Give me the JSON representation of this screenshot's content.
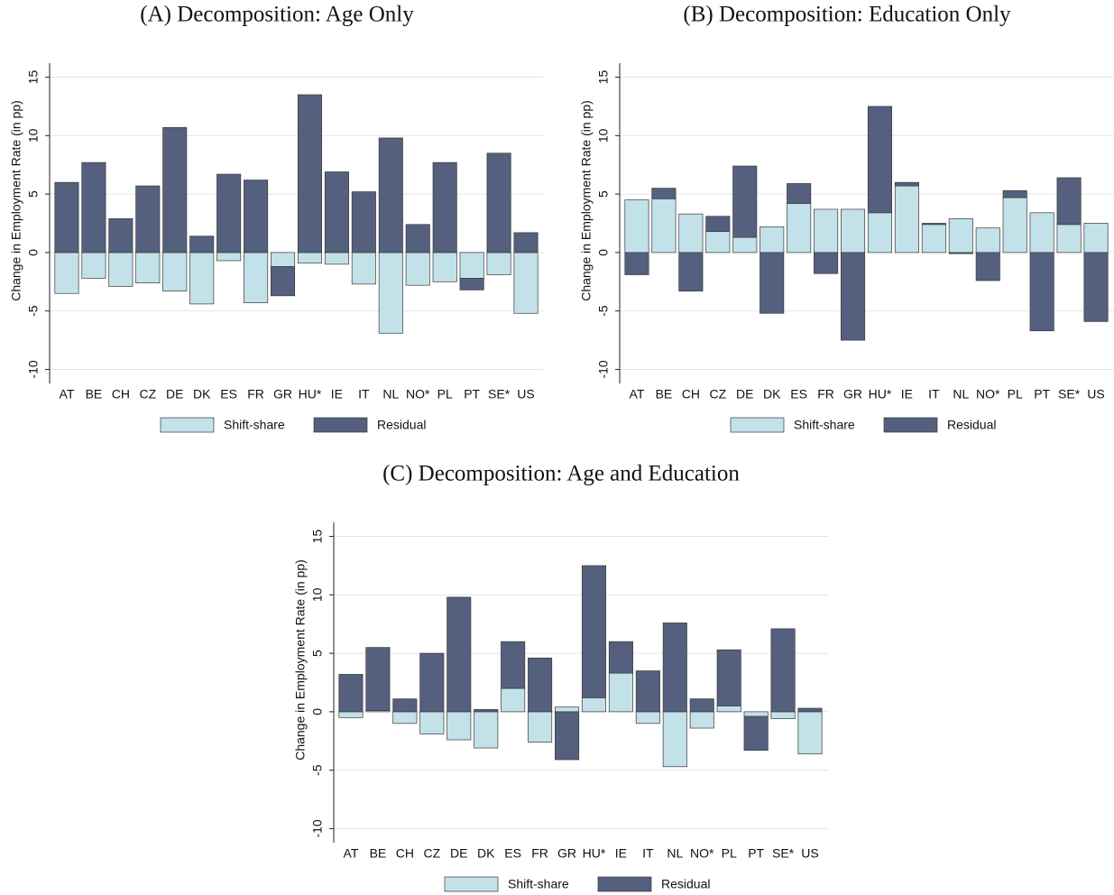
{
  "chart_data": [
    {
      "type": "bar",
      "stacked": true,
      "title": "(A) Decomposition: Age Only",
      "ylabel": "Change in Employment Rate (in pp)",
      "categories": [
        "AT",
        "BE",
        "CH",
        "CZ",
        "DE",
        "DK",
        "ES",
        "FR",
        "GR",
        "HU*",
        "IE",
        "IT",
        "NL",
        "NO*",
        "PL",
        "PT",
        "SE*",
        "US"
      ],
      "series": [
        {
          "name": "Shift-share",
          "color": "#c3e1e8",
          "values": [
            -3.5,
            -2.2,
            -2.9,
            -2.6,
            -3.3,
            -4.4,
            -0.7,
            -4.3,
            -1.2,
            -0.9,
            -1.0,
            -2.7,
            -6.9,
            -2.8,
            -2.5,
            -2.2,
            -1.9,
            -5.2
          ]
        },
        {
          "name": "Residual",
          "color": "#54607e",
          "values": [
            6.0,
            7.7,
            2.9,
            5.7,
            10.7,
            1.4,
            6.7,
            6.2,
            -2.5,
            13.5,
            6.9,
            5.2,
            9.8,
            2.4,
            7.7,
            -1.0,
            8.5,
            1.7
          ]
        }
      ],
      "ylim": [
        -11.2,
        16.2
      ],
      "yticks": [
        -10,
        -5,
        0,
        5,
        10,
        15
      ],
      "grid": true
    },
    {
      "type": "bar",
      "stacked": true,
      "title": "(B) Decomposition: Education Only",
      "ylabel": "Change in Employment Rate (in pp)",
      "categories": [
        "AT",
        "BE",
        "CH",
        "CZ",
        "DE",
        "DK",
        "ES",
        "FR",
        "GR",
        "HU*",
        "IE",
        "IT",
        "NL",
        "NO*",
        "PL",
        "PT",
        "SE*",
        "US"
      ],
      "series": [
        {
          "name": "Shift-share",
          "color": "#c3e1e8",
          "values": [
            4.5,
            4.6,
            3.3,
            1.8,
            1.3,
            2.2,
            4.2,
            3.7,
            3.7,
            3.4,
            5.7,
            2.4,
            2.9,
            2.1,
            4.7,
            3.4,
            2.4,
            2.5
          ]
        },
        {
          "name": "Residual",
          "color": "#54607e",
          "values": [
            -1.9,
            0.9,
            -3.3,
            1.3,
            6.1,
            -5.2,
            1.7,
            -1.8,
            -7.5,
            9.1,
            0.3,
            0.1,
            -0.1,
            -2.4,
            0.6,
            -6.7,
            4.0,
            -5.9
          ]
        }
      ],
      "ylim": [
        -11.2,
        16.2
      ],
      "yticks": [
        -10,
        -5,
        0,
        5,
        10,
        15
      ],
      "grid": true
    },
    {
      "type": "bar",
      "stacked": true,
      "title": "(C) Decomposition: Age and Education",
      "ylabel": "Change in Employment Rate (in pp)",
      "categories": [
        "AT",
        "BE",
        "CH",
        "CZ",
        "DE",
        "DK",
        "ES",
        "FR",
        "GR",
        "HU*",
        "IE",
        "IT",
        "NL",
        "NO*",
        "PL",
        "PT",
        "SE*",
        "US"
      ],
      "series": [
        {
          "name": "Shift-share",
          "color": "#c3e1e8",
          "values": [
            -0.5,
            0.1,
            -1.0,
            -1.9,
            -2.4,
            -3.1,
            2.0,
            -2.6,
            0.4,
            1.2,
            3.3,
            -1.0,
            -4.7,
            -1.4,
            0.5,
            -0.4,
            -0.6,
            -3.6
          ]
        },
        {
          "name": "Residual",
          "color": "#54607e",
          "values": [
            3.2,
            5.4,
            1.1,
            5.0,
            9.8,
            0.2,
            4.0,
            4.6,
            -4.1,
            11.3,
            2.7,
            3.5,
            7.6,
            1.1,
            4.8,
            -2.9,
            7.1,
            0.3
          ]
        }
      ],
      "ylim": [
        -11.2,
        16.2
      ],
      "yticks": [
        -10,
        -5,
        0,
        5,
        10,
        15
      ],
      "grid": true
    }
  ]
}
